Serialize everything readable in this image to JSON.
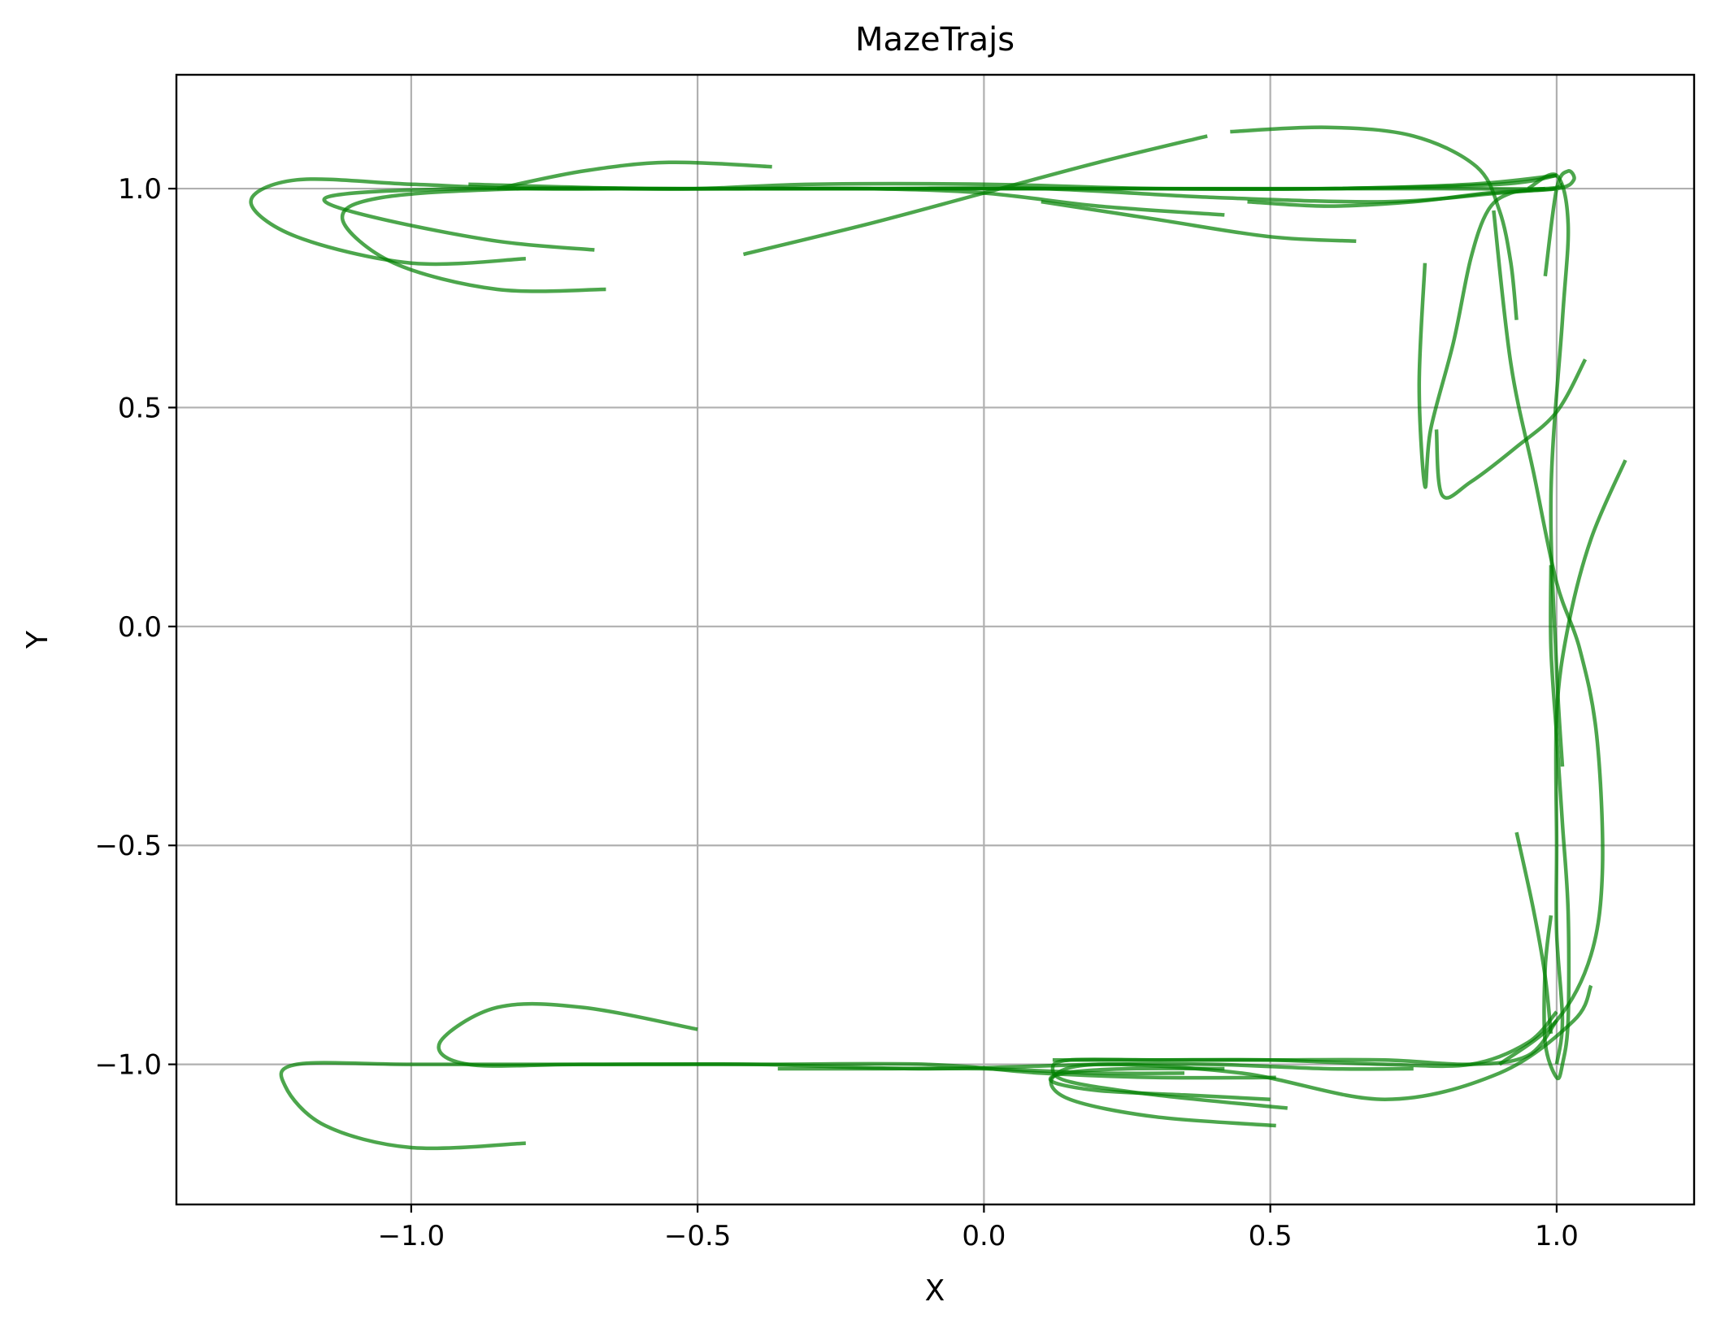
{
  "chart_data": {
    "type": "line",
    "title": "MazeTrajs",
    "xlabel": "X",
    "ylabel": "Y",
    "xlim": [
      -1.41,
      1.24
    ],
    "ylim": [
      -1.32,
      1.26
    ],
    "xticks": [
      -1.0,
      -0.5,
      0.0,
      0.5,
      1.0
    ],
    "yticks": [
      -1.0,
      -0.5,
      0.0,
      0.5,
      1.0
    ],
    "xtick_labels": [
      "−1.0",
      "−0.5",
      "0.0",
      "0.5",
      "1.0"
    ],
    "ytick_labels": [
      "−1.0",
      "−0.5",
      "0.0",
      "0.5",
      "1.0"
    ],
    "grid": true,
    "legend": false,
    "line_color": "#008000",
    "series": [
      {
        "x": [
          -0.42,
          -0.2,
          0.0,
          0.2,
          0.39
        ],
        "y": [
          0.85,
          0.92,
          0.99,
          1.06,
          1.12
        ]
      },
      {
        "x": [
          0.43,
          0.6,
          0.75,
          0.86,
          0.9,
          0.92,
          0.93
        ],
        "y": [
          1.13,
          1.14,
          1.12,
          1.05,
          0.95,
          0.83,
          0.7
        ]
      },
      {
        "x": [
          -0.85,
          -0.7,
          -0.55,
          -0.37
        ],
        "y": [
          1.0,
          1.04,
          1.06,
          1.05
        ]
      },
      {
        "x": [
          -0.4,
          -0.2,
          0.0,
          0.2,
          0.42
        ],
        "y": [
          1.0,
          1.0,
          0.99,
          0.96,
          0.94
        ]
      },
      {
        "x": [
          0.1,
          0.3,
          0.5,
          0.65
        ],
        "y": [
          0.97,
          0.93,
          0.89,
          0.88
        ]
      },
      {
        "x": [
          -0.9,
          -0.6,
          -0.3,
          0.0,
          0.3,
          0.6,
          0.8,
          0.98,
          1.01
        ],
        "y": [
          1.01,
          1.0,
          1.0,
          1.0,
          1.0,
          1.0,
          1.0,
          1.0,
          1.01
        ]
      },
      {
        "x": [
          -0.68,
          -0.85,
          -1.05,
          -1.15,
          -1.1,
          -0.9,
          -0.7,
          -0.5,
          -0.3,
          0.0,
          0.3,
          0.6,
          0.85,
          1.0
        ],
        "y": [
          0.86,
          0.88,
          0.93,
          0.97,
          0.99,
          1.0,
          1.0,
          1.0,
          1.01,
          1.01,
          1.0,
          1.0,
          1.01,
          1.03
        ]
      },
      {
        "x": [
          -0.8,
          -1.0,
          -1.2,
          -1.28,
          -1.2,
          -1.0,
          -0.8,
          -0.6,
          -0.3,
          0.0,
          0.3,
          0.6,
          0.9,
          1.0
        ],
        "y": [
          0.84,
          0.83,
          0.89,
          0.97,
          1.02,
          1.01,
          1.0,
          1.0,
          1.0,
          1.0,
          1.0,
          1.0,
          1.01,
          1.03
        ]
      },
      {
        "x": [
          -0.66,
          -0.85,
          -1.03,
          -1.12,
          -1.05,
          -0.8,
          -0.5,
          -0.2,
          0.1,
          0.4,
          0.7,
          0.9,
          1.0
        ],
        "y": [
          0.77,
          0.77,
          0.83,
          0.93,
          0.98,
          1.0,
          1.0,
          1.0,
          1.0,
          0.98,
          0.97,
          0.99,
          1.0
        ]
      },
      {
        "x": [
          0.46,
          0.6,
          0.75,
          0.88,
          1.0,
          1.03,
          1.02,
          1.0,
          0.98
        ],
        "y": [
          0.97,
          0.96,
          0.97,
          0.99,
          1.0,
          1.02,
          1.04,
          1.0,
          0.8
        ]
      },
      {
        "x": [
          0.95,
          1.0,
          1.02,
          1.01,
          0.99,
          1.0,
          1.01
        ],
        "y": [
          1.0,
          1.03,
          0.92,
          0.7,
          0.3,
          -0.1,
          -0.32
        ]
      },
      {
        "x": [
          0.98,
          0.92,
          0.88,
          0.85,
          0.82,
          0.78,
          0.77,
          0.76,
          0.77
        ],
        "y": [
          1.0,
          0.99,
          0.95,
          0.84,
          0.65,
          0.45,
          0.32,
          0.55,
          0.83
        ]
      },
      {
        "x": [
          1.05,
          1.0,
          0.93,
          0.85,
          0.8,
          0.79
        ],
        "y": [
          0.61,
          0.49,
          0.41,
          0.33,
          0.3,
          0.45
        ]
      },
      {
        "x": [
          0.89,
          0.92,
          0.96,
          1.0,
          1.04,
          1.07,
          1.08,
          1.06,
          1.0,
          0.9
        ],
        "y": [
          0.95,
          0.6,
          0.35,
          0.1,
          -0.05,
          -0.25,
          -0.55,
          -0.75,
          -0.9,
          -1.0
        ]
      },
      {
        "x": [
          1.12,
          1.06,
          1.02,
          1.0,
          1.0,
          1.0,
          1.01,
          1.0
        ],
        "y": [
          0.38,
          0.2,
          0.0,
          -0.2,
          -0.5,
          -0.7,
          -0.9,
          -1.0
        ]
      },
      {
        "x": [
          0.99,
          0.99,
          1.0,
          1.01,
          1.02,
          1.02,
          1.01,
          1.0,
          0.98,
          0.98,
          0.99
        ],
        "y": [
          0.14,
          -0.05,
          -0.25,
          -0.45,
          -0.65,
          -0.9,
          -1.0,
          -1.03,
          -0.95,
          -0.78,
          -0.66
        ]
      },
      {
        "x": [
          0.93,
          0.96,
          0.98,
          0.99
        ],
        "y": [
          -0.47,
          -0.65,
          -0.8,
          -0.93
        ]
      },
      {
        "x": [
          -0.8,
          -1.0,
          -1.15,
          -1.22,
          -1.2,
          -1.0,
          -0.7,
          -0.4,
          -0.1,
          0.2,
          0.4,
          0.6,
          0.75
        ],
        "y": [
          -1.18,
          -1.19,
          -1.14,
          -1.05,
          -1.0,
          -1.0,
          -1.0,
          -1.0,
          -1.01,
          -1.0,
          -1.0,
          -1.01,
          -1.01
        ]
      },
      {
        "x": [
          -0.5,
          -0.7,
          -0.85,
          -0.95,
          -0.9,
          -0.7,
          -0.4,
          -0.1,
          0.1,
          0.3,
          0.51
        ],
        "y": [
          -0.92,
          -0.87,
          -0.87,
          -0.95,
          -1.0,
          -1.0,
          -1.0,
          -1.0,
          -1.02,
          -1.03,
          -1.03
        ]
      },
      {
        "x": [
          0.12,
          0.3,
          0.5,
          0.7,
          0.85,
          0.95,
          1.0
        ],
        "y": [
          -0.99,
          -0.99,
          -0.99,
          -1.0,
          -1.0,
          -0.95,
          -0.88
        ]
      },
      {
        "x": [
          0.53,
          0.3,
          0.15,
          0.12,
          0.15,
          0.3,
          0.5,
          0.7,
          0.85,
          0.95,
          1.0
        ],
        "y": [
          -1.1,
          -1.07,
          -1.04,
          -1.01,
          -0.99,
          -0.99,
          -0.99,
          -0.99,
          -1.0,
          -0.98,
          -0.9
        ]
      },
      {
        "x": [
          0.51,
          0.3,
          0.15,
          0.12,
          0.2,
          0.45,
          0.7,
          0.9,
          1.03,
          1.06
        ],
        "y": [
          -1.14,
          -1.12,
          -1.08,
          -1.03,
          -1.0,
          -1.02,
          -1.08,
          -1.02,
          -0.9,
          -0.82
        ]
      },
      {
        "x": [
          0.5,
          0.35,
          0.2,
          0.12,
          0.14,
          0.25,
          0.42
        ],
        "y": [
          -1.08,
          -1.07,
          -1.06,
          -1.04,
          -1.02,
          -1.01,
          -1.01
        ]
      },
      {
        "x": [
          -0.36,
          -0.2,
          0.0,
          0.2,
          0.35
        ],
        "y": [
          -1.01,
          -1.01,
          -1.01,
          -1.02,
          -1.02
        ]
      }
    ]
  }
}
